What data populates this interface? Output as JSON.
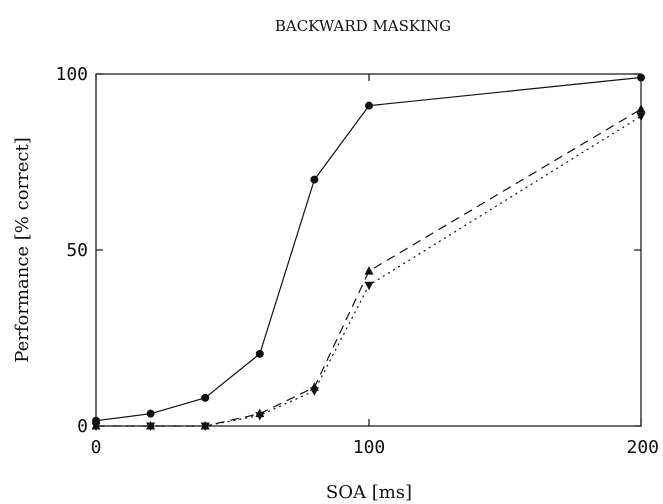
{
  "chart_data": {
    "type": "line",
    "title": "BACKWARD MASKING",
    "xlabel": "SOA [ms]",
    "ylabel": "Performance [% correct]",
    "xlim": [
      0,
      200
    ],
    "ylim": [
      0,
      100
    ],
    "x_scale": "piecewise-linear",
    "xticks": [
      0,
      100,
      200
    ],
    "yticks": [
      0,
      50,
      100
    ],
    "grid": false,
    "legend": "none",
    "series": [
      {
        "marker": "circle",
        "line_style": "solid",
        "points": [
          [
            0,
            1.5
          ],
          [
            20,
            3.5
          ],
          [
            40,
            8
          ],
          [
            60,
            20.5
          ],
          [
            80,
            70
          ],
          [
            100,
            91
          ],
          [
            200,
            99
          ]
        ]
      },
      {
        "marker": "triangle-up",
        "line_style": "dashed",
        "points": [
          [
            0,
            0
          ],
          [
            20,
            0
          ],
          [
            40,
            0
          ],
          [
            60,
            3.5
          ],
          [
            80,
            11
          ],
          [
            100,
            44
          ],
          [
            200,
            90
          ]
        ]
      },
      {
        "marker": "triangle-down",
        "line_style": "dotted",
        "points": [
          [
            0,
            0
          ],
          [
            20,
            0
          ],
          [
            40,
            0
          ],
          [
            60,
            3
          ],
          [
            80,
            10
          ],
          [
            100,
            40
          ],
          [
            200,
            88
          ]
        ]
      }
    ]
  }
}
